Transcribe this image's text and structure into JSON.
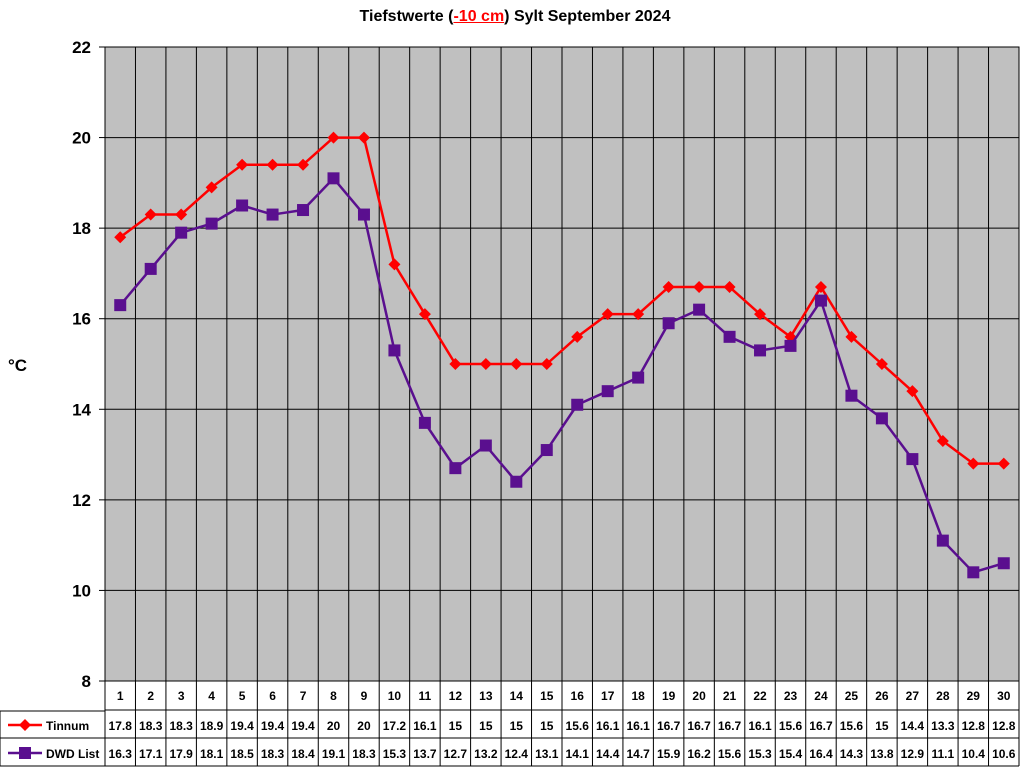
{
  "title": {
    "prefix": "Tiefstwerte (",
    "highlight": "-10 cm",
    "suffix": ") Sylt September 2024"
  },
  "chart_data": {
    "type": "line",
    "ylabel": "°C",
    "ylim": [
      8,
      22
    ],
    "yticks": [
      8,
      10,
      12,
      14,
      16,
      18,
      20,
      22
    ],
    "categories": [
      "1",
      "2",
      "3",
      "4",
      "5",
      "6",
      "7",
      "8",
      "9",
      "10",
      "11",
      "12",
      "13",
      "14",
      "15",
      "16",
      "17",
      "18",
      "19",
      "20",
      "21",
      "22",
      "23",
      "24",
      "25",
      "26",
      "27",
      "28",
      "29",
      "30"
    ],
    "grid": true,
    "legend_placement": "data-table-bottom",
    "series": [
      {
        "name": "Tinnum",
        "color": "#ff0000",
        "marker": "diamond",
        "values": [
          17.8,
          18.3,
          18.3,
          18.9,
          19.4,
          19.4,
          19.4,
          20,
          20,
          17.2,
          16.1,
          15,
          15,
          15,
          15,
          15.6,
          16.1,
          16.1,
          16.7,
          16.7,
          16.7,
          16.1,
          15.6,
          16.7,
          15.6,
          15,
          14.4,
          13.3,
          12.8,
          12.8
        ]
      },
      {
        "name": "DWD List",
        "color": "#5a0f8f",
        "marker": "square",
        "values": [
          16.3,
          17.1,
          17.9,
          18.1,
          18.5,
          18.3,
          18.4,
          19.1,
          18.3,
          15.3,
          13.7,
          12.7,
          13.2,
          12.4,
          13.1,
          14.1,
          14.4,
          14.7,
          15.9,
          16.2,
          15.6,
          15.3,
          15.4,
          16.4,
          14.3,
          13.8,
          12.9,
          11.1,
          10.4,
          10.6
        ]
      }
    ]
  }
}
